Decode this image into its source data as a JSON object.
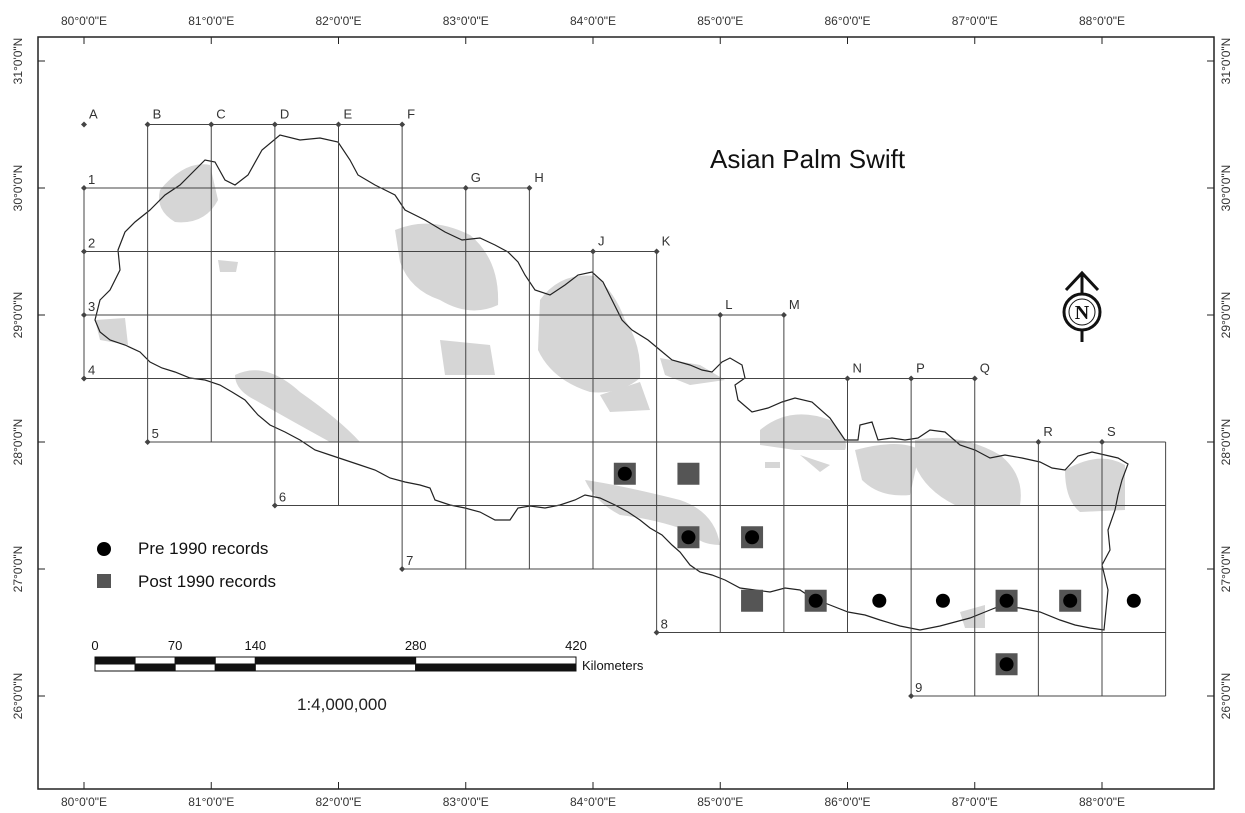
{
  "map": {
    "title": "Asian Palm Swift",
    "lon_ticks": [
      "80°0'0\"E",
      "81°0'0\"E",
      "82°0'0\"E",
      "83°0'0\"E",
      "84°0'0\"E",
      "85°0'0\"E",
      "86°0'0\"E",
      "87°0'0\"E",
      "88°0'0\"E"
    ],
    "lat_ticks": [
      "31°0'0\"N",
      "30°0'0\"N",
      "29°0'0\"N",
      "28°0'0\"N",
      "27°0'0\"N",
      "26°0'0\"N"
    ],
    "grid_col_labels": [
      "A",
      "B",
      "C",
      "D",
      "E",
      "F",
      "G",
      "H",
      "J",
      "K",
      "L",
      "M",
      "N",
      "P",
      "Q",
      "R",
      "S"
    ],
    "grid_row_labels": [
      "1",
      "2",
      "3",
      "4",
      "5",
      "6",
      "7",
      "8",
      "9"
    ],
    "legend": {
      "pre": {
        "label": "Pre 1990 records",
        "color": "#000000"
      },
      "post": {
        "label": "Post 1990 records",
        "color": "#555555"
      }
    },
    "scale": {
      "labels": [
        "0",
        "70",
        "140",
        "280",
        "420"
      ],
      "unit": "Kilometers",
      "ratio": "1:4,000,000"
    },
    "north_arrow": {
      "label": "N",
      "icon": "north-arrow-icon"
    },
    "records": [
      {
        "type": "both",
        "lon": 84.25,
        "lat": 27.75
      },
      {
        "type": "post",
        "lon": 84.75,
        "lat": 27.75
      },
      {
        "type": "both",
        "lon": 84.75,
        "lat": 27.25
      },
      {
        "type": "both",
        "lon": 85.25,
        "lat": 27.25
      },
      {
        "type": "post",
        "lon": 85.25,
        "lat": 26.75
      },
      {
        "type": "both",
        "lon": 85.75,
        "lat": 26.75
      },
      {
        "type": "pre",
        "lon": 86.25,
        "lat": 26.75
      },
      {
        "type": "pre",
        "lon": 86.75,
        "lat": 26.75
      },
      {
        "type": "both",
        "lon": 87.25,
        "lat": 26.75
      },
      {
        "type": "both",
        "lon": 87.75,
        "lat": 26.75
      },
      {
        "type": "pre",
        "lon": 88.25,
        "lat": 26.75
      },
      {
        "type": "both",
        "lon": 87.25,
        "lat": 26.25
      }
    ]
  }
}
